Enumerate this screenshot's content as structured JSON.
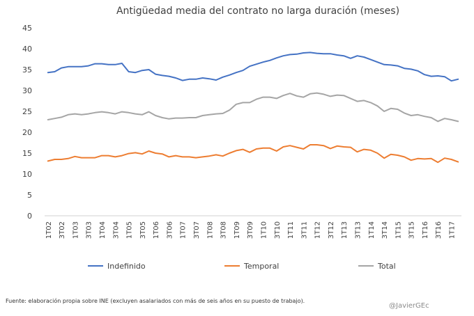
{
  "chart_data": {
    "type": "line",
    "title": "Antigüedad media del contrato no larga duración (meses)",
    "xlabel": "",
    "ylabel": "",
    "ylim": [
      0,
      45
    ],
    "yticks": [
      0,
      5,
      10,
      15,
      20,
      25,
      30,
      35,
      40,
      45
    ],
    "grid": false,
    "legend_position": "bottom",
    "x": [
      "1T02",
      "2T02",
      "3T02",
      "4T02",
      "1T03",
      "2T03",
      "3T03",
      "4T03",
      "1T04",
      "2T04",
      "3T04",
      "4T04",
      "1T05",
      "2T05",
      "3T05",
      "4T05",
      "1T06",
      "2T06",
      "3T06",
      "4T06",
      "1T07",
      "2T07",
      "3T07",
      "4T07",
      "1T08",
      "2T08",
      "3T08",
      "4T08",
      "1T09",
      "2T09",
      "3T09",
      "4T09",
      "1T10",
      "2T10",
      "3T10",
      "4T10",
      "1T11",
      "2T11",
      "3T11",
      "4T11",
      "1T12",
      "2T12",
      "3T12",
      "4T12",
      "1T13",
      "2T13",
      "3T13",
      "4T13",
      "1T14",
      "2T14",
      "3T14",
      "4T14",
      "1T15",
      "2T15",
      "3T15",
      "4T15",
      "1T16",
      "2T16",
      "3T16",
      "4T16",
      "1T17",
      "2T17"
    ],
    "x_tick_labels": [
      "1T02",
      "3T02",
      "1T03",
      "3T03",
      "1T04",
      "3T04",
      "1T05",
      "3T05",
      "1T06",
      "3T06",
      "1T07",
      "3T07",
      "1T08",
      "3T08",
      "1T09",
      "3T09",
      "1T10",
      "3T10",
      "1T11",
      "3T11",
      "1T12",
      "3T12",
      "1T13",
      "3T13",
      "1T14",
      "3T14",
      "1T15",
      "3T15",
      "1T16",
      "3T16",
      "1T17"
    ],
    "series": [
      {
        "name": "Indefinido",
        "color": "#4472C4",
        "values": [
          34.3,
          34.5,
          35.4,
          35.7,
          35.7,
          35.7,
          35.9,
          36.4,
          36.4,
          36.2,
          36.2,
          36.5,
          34.5,
          34.3,
          34.8,
          35.0,
          33.9,
          33.6,
          33.4,
          33.0,
          32.4,
          32.7,
          32.7,
          33.0,
          32.8,
          32.5,
          33.2,
          33.7,
          34.3,
          34.8,
          35.8,
          36.3,
          36.8,
          37.2,
          37.8,
          38.3,
          38.6,
          38.7,
          39.0,
          39.1,
          38.9,
          38.8,
          38.8,
          38.5,
          38.3,
          37.7,
          38.3,
          38.0,
          37.4,
          36.8,
          36.2,
          36.1,
          35.9,
          35.3,
          35.1,
          34.7,
          33.8,
          33.4,
          33.5,
          33.3,
          32.3,
          32.7
        ]
      },
      {
        "name": "Temporal",
        "color": "#ED7D31",
        "values": [
          13.1,
          13.5,
          13.5,
          13.7,
          14.2,
          13.9,
          13.9,
          13.9,
          14.4,
          14.4,
          14.1,
          14.4,
          14.9,
          15.1,
          14.8,
          15.5,
          15.0,
          14.8,
          14.1,
          14.4,
          14.1,
          14.1,
          13.9,
          14.1,
          14.3,
          14.6,
          14.3,
          15.0,
          15.6,
          15.9,
          15.2,
          16.0,
          16.2,
          16.2,
          15.5,
          16.5,
          16.8,
          16.4,
          16.0,
          17.0,
          17.0,
          16.8,
          16.1,
          16.7,
          16.5,
          16.4,
          15.3,
          15.9,
          15.7,
          15.0,
          13.8,
          14.7,
          14.5,
          14.1,
          13.3,
          13.7,
          13.6,
          13.7,
          12.8,
          13.8,
          13.5,
          12.9
        ]
      },
      {
        "name": "Total",
        "color": "#A5A5A5",
        "values": [
          23.0,
          23.3,
          23.6,
          24.2,
          24.4,
          24.2,
          24.4,
          24.7,
          24.9,
          24.7,
          24.4,
          24.9,
          24.7,
          24.4,
          24.2,
          24.9,
          24.0,
          23.5,
          23.2,
          23.4,
          23.4,
          23.5,
          23.5,
          24.0,
          24.2,
          24.4,
          24.5,
          25.3,
          26.7,
          27.1,
          27.1,
          27.9,
          28.4,
          28.4,
          28.1,
          28.8,
          29.3,
          28.7,
          28.4,
          29.2,
          29.4,
          29.1,
          28.6,
          28.9,
          28.8,
          28.1,
          27.4,
          27.6,
          27.1,
          26.3,
          25.0,
          25.7,
          25.5,
          24.6,
          24.0,
          24.2,
          23.8,
          23.5,
          22.6,
          23.3,
          23.0,
          22.6
        ]
      }
    ]
  },
  "footer": {
    "source": "Fuente: elaboración propia sobre INE (excluyen asalariados con más de seis años en su puesto de trabajo).",
    "credit": "@JavierGEc"
  }
}
